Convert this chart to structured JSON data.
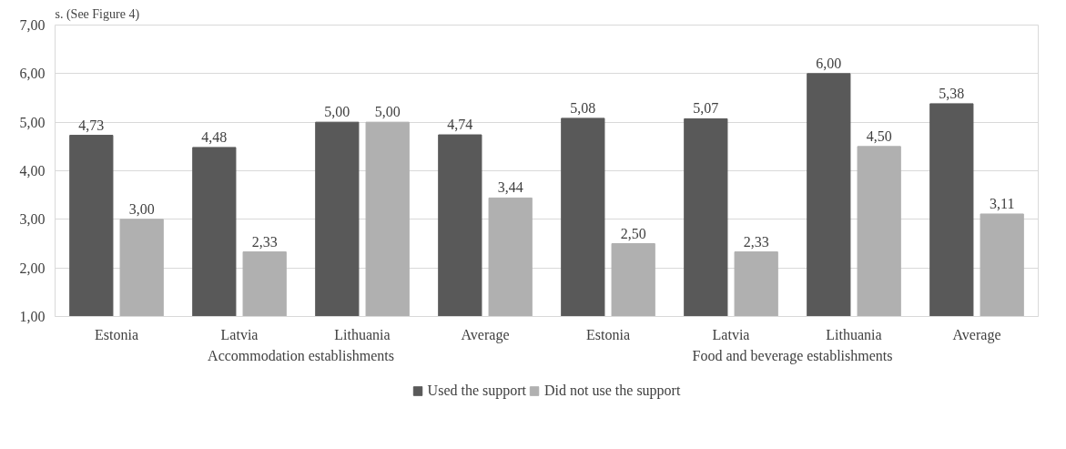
{
  "chart_data": {
    "type": "bar",
    "categories": [
      "Estonia",
      "Latvia",
      "Lithuania",
      "Average",
      "Estonia",
      "Latvia",
      "Lithuania",
      "Average"
    ],
    "series": [
      {
        "name": "Used the support",
        "color": "#595959",
        "values": [
          4.73,
          4.48,
          5.0,
          4.74,
          5.08,
          5.07,
          6.0,
          5.38
        ],
        "value_labels": [
          "4,73",
          "4,48",
          "5,00",
          "4,74",
          "5,08",
          "5,07",
          "6,00",
          "5,38"
        ]
      },
      {
        "name": "Did not use the support",
        "color": "#b0b0b0",
        "values": [
          3.0,
          2.33,
          5.0,
          3.44,
          2.5,
          2.33,
          4.5,
          3.11
        ],
        "value_labels": [
          "3,00",
          "2,33",
          "5,00",
          "3,44",
          "2,50",
          "2,33",
          "4,50",
          "3,11"
        ]
      }
    ],
    "annotations": [
      "s. (See Figure 4)",
      "Accommodation establishments",
      "Food and beverage establishments"
    ],
    "ylim": [
      1,
      7
    ],
    "yticks": [
      {
        "value": 1,
        "label": "1,00"
      },
      {
        "value": 2,
        "label": "2,00"
      },
      {
        "value": 3,
        "label": "3,00"
      },
      {
        "value": 4,
        "label": "4,00"
      },
      {
        "value": 5,
        "label": "5,00"
      },
      {
        "value": 6,
        "label": "6,00"
      },
      {
        "value": 7,
        "label": "7,00"
      }
    ],
    "grid": "y",
    "legend": "bottom"
  }
}
